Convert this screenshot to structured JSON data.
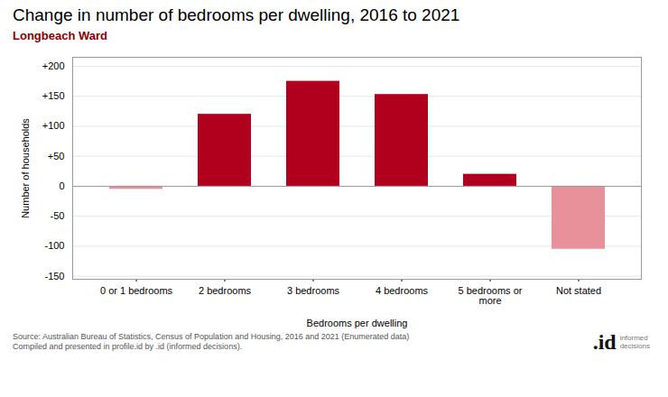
{
  "chart_data": {
    "type": "bar",
    "title": "Change in number of bedrooms per dwelling, 2016 to 2021",
    "subtitle": "Longbeach Ward",
    "categories": [
      "0 or 1 bedrooms",
      "2 bedrooms",
      "3 bedrooms",
      "4 bedrooms",
      "5 bedrooms or\nmore",
      "Not stated"
    ],
    "values": [
      -5,
      120,
      175,
      153,
      20,
      -105
    ],
    "colors": [
      "#e8919a",
      "#b0001e",
      "#b0001e",
      "#b0001e",
      "#b0001e",
      "#e8919a"
    ],
    "xlabel": "Bedrooms per dwelling",
    "ylabel": "Number of households",
    "ylim": [
      -155,
      215
    ],
    "yticks": [
      -150,
      -100,
      -50,
      0,
      {
        "value": 50,
        "label": "+50"
      },
      {
        "value": 100,
        "label": "+100"
      },
      {
        "value": 150,
        "label": "+150"
      },
      {
        "value": 200,
        "label": "+200"
      }
    ],
    "grid": true,
    "source": "Source: Australian Bureau of Statistics, Census of Population and Housing, 2016 and 2021 (Enumerated data)\nCompiled and presented in profile.id by .id (informed decisions).",
    "annotations": [
      ".id",
      "informed\ndecisions"
    ]
  }
}
